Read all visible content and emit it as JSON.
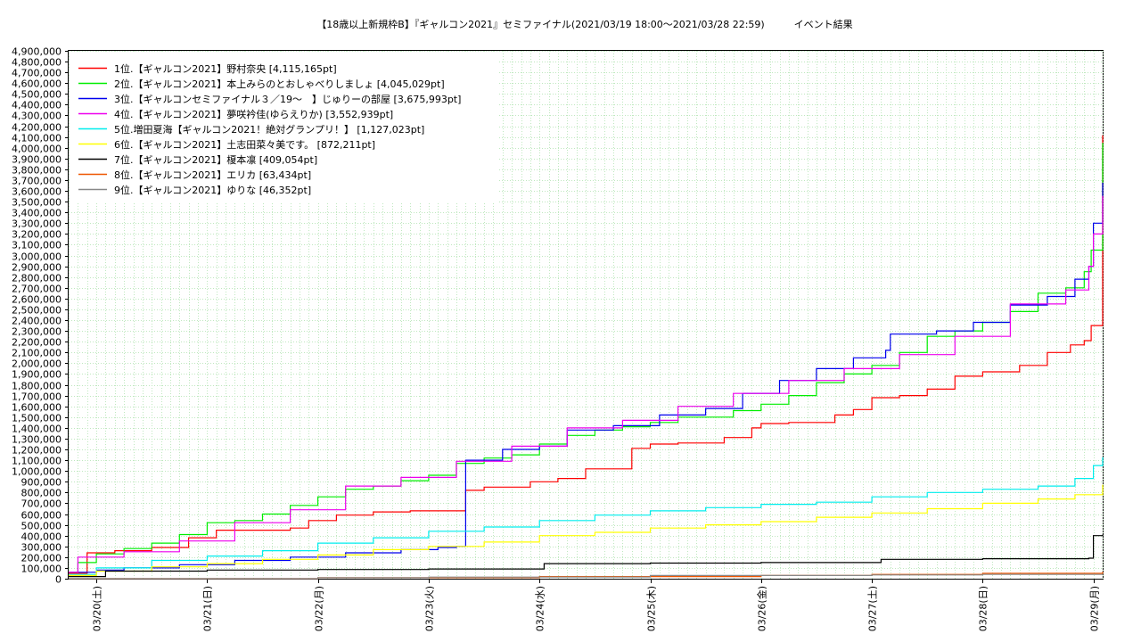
{
  "chart_data": {
    "type": "line",
    "title": "【18歳以上新規枠B】『ギャルコン2021』セミファイナル(2021/03/19 18:00～2021/03/28 22:59)　　　イベント結果",
    "xlabel": "",
    "ylabel": "",
    "ylim": [
      0,
      4900000
    ],
    "xlim": [
      "2021-03-19 18:00",
      "2021-03-29 02:00"
    ],
    "grid": true,
    "legend_position": "top-left",
    "x_ticks": [
      "03/20(土)",
      "03/21(日)",
      "03/22(月)",
      "03/23(火)",
      "03/24(水)",
      "03/25(木)",
      "03/26(金)",
      "03/27(土)",
      "03/28(日)",
      "03/29(月)"
    ],
    "y_ticks": [
      "0",
      "100,000",
      "200,000",
      "300,000",
      "400,000",
      "500,000",
      "600,000",
      "700,000",
      "800,000",
      "900,000",
      "1,000,000",
      "1,100,000",
      "1,200,000",
      "1,300,000",
      "1,400,000",
      "1,500,000",
      "1,600,000",
      "1,700,000",
      "1,800,000",
      "1,900,000",
      "2,000,000",
      "2,100,000",
      "2,200,000",
      "2,300,000",
      "2,400,000",
      "2,500,000",
      "2,600,000",
      "2,700,000",
      "2,800,000",
      "2,900,000",
      "3,000,000",
      "3,100,000",
      "3,200,000",
      "3,300,000",
      "3,400,000",
      "3,500,000",
      "3,600,000",
      "3,700,000",
      "3,800,000",
      "3,900,000",
      "4,000,000",
      "4,100,000",
      "4,200,000",
      "4,300,000",
      "4,400,000",
      "4,500,000",
      "4,600,000",
      "4,700,000",
      "4,800,000",
      "4,900,000"
    ],
    "series": [
      {
        "name": "1位.【ギャルコン2021】野村奈央 [4,115,165pt]",
        "color": "#ff0000",
        "x": [
          "2021-03-19 18:00",
          "2021-03-19 22:00",
          "2021-03-20 04:00",
          "2021-03-20 12:00",
          "2021-03-20 20:00",
          "2021-03-21 02:00",
          "2021-03-21 10:00",
          "2021-03-21 18:00",
          "2021-03-21 22:00",
          "2021-03-22 04:00",
          "2021-03-22 12:00",
          "2021-03-22 18:00",
          "2021-03-22 20:00",
          "2021-03-23 02:00",
          "2021-03-23 08:00",
          "2021-03-23 12:00",
          "2021-03-23 18:00",
          "2021-03-23 22:00",
          "2021-03-24 04:00",
          "2021-03-24 10:00",
          "2021-03-24 20:00",
          "2021-03-25 00:00",
          "2021-03-25 06:00",
          "2021-03-25 16:00",
          "2021-03-25 22:00",
          "2021-03-26 00:00",
          "2021-03-26 06:00",
          "2021-03-26 16:00",
          "2021-03-26 20:00",
          "2021-03-27 00:00",
          "2021-03-27 06:00",
          "2021-03-27 12:00",
          "2021-03-27 18:00",
          "2021-03-28 00:00",
          "2021-03-28 08:00",
          "2021-03-28 14:00",
          "2021-03-28 19:00",
          "2021-03-28 22:00",
          "2021-03-28 23:30",
          "2021-03-29 02:00"
        ],
        "y": [
          50000,
          240000,
          260000,
          290000,
          380000,
          450000,
          450000,
          470000,
          540000,
          590000,
          620000,
          620000,
          630000,
          630000,
          820000,
          850000,
          850000,
          900000,
          930000,
          1020000,
          1210000,
          1250000,
          1260000,
          1310000,
          1400000,
          1440000,
          1450000,
          1520000,
          1570000,
          1680000,
          1700000,
          1760000,
          1880000,
          1920000,
          1980000,
          2100000,
          2170000,
          2210000,
          2350000,
          4115165
        ]
      },
      {
        "name": "2位.【ギャルコン2021】本上みらのとおしゃべりしましょ [4,045,029pt]",
        "color": "#00ee00",
        "x": [
          "2021-03-19 18:00",
          "2021-03-19 20:00",
          "2021-03-20 00:00",
          "2021-03-20 06:00",
          "2021-03-20 12:00",
          "2021-03-20 18:00",
          "2021-03-21 00:00",
          "2021-03-21 06:00",
          "2021-03-21 12:00",
          "2021-03-21 18:00",
          "2021-03-22 00:00",
          "2021-03-22 06:00",
          "2021-03-22 12:00",
          "2021-03-22 18:00",
          "2021-03-23 00:00",
          "2021-03-23 06:00",
          "2021-03-23 12:00",
          "2021-03-23 18:00",
          "2021-03-24 00:00",
          "2021-03-24 06:00",
          "2021-03-24 12:00",
          "2021-03-24 18:00",
          "2021-03-25 00:00",
          "2021-03-25 06:00",
          "2021-03-25 12:00",
          "2021-03-25 18:00",
          "2021-03-26 00:00",
          "2021-03-26 06:00",
          "2021-03-26 12:00",
          "2021-03-26 18:00",
          "2021-03-27 00:00",
          "2021-03-27 06:00",
          "2021-03-27 12:00",
          "2021-03-27 18:00",
          "2021-03-28 00:00",
          "2021-03-28 06:00",
          "2021-03-28 12:00",
          "2021-03-28 18:00",
          "2021-03-28 22:00",
          "2021-03-28 23:30",
          "2021-03-29 02:00"
        ],
        "y": [
          60000,
          150000,
          230000,
          280000,
          330000,
          410000,
          520000,
          540000,
          600000,
          680000,
          760000,
          830000,
          860000,
          910000,
          960000,
          1070000,
          1120000,
          1150000,
          1250000,
          1330000,
          1380000,
          1410000,
          1450000,
          1500000,
          1500000,
          1560000,
          1620000,
          1700000,
          1820000,
          1900000,
          1980000,
          2100000,
          2250000,
          2300000,
          2380000,
          2480000,
          2650000,
          2700000,
          2850000,
          3050000,
          4045029
        ]
      },
      {
        "name": "3位.【ギャルコンセミファイナル３／19～　】じゅりーの部屋 [3,675,993pt]",
        "color": "#0000ee",
        "x": [
          "2021-03-19 18:00",
          "2021-03-20 00:00",
          "2021-03-20 06:00",
          "2021-03-20 18:00",
          "2021-03-21 06:00",
          "2021-03-21 18:00",
          "2021-03-22 06:00",
          "2021-03-22 18:00",
          "2021-03-23 02:00",
          "2021-03-23 06:00",
          "2021-03-23 08:00",
          "2021-03-23 16:00",
          "2021-03-24 00:00",
          "2021-03-24 06:00",
          "2021-03-24 16:00",
          "2021-03-25 02:00",
          "2021-03-25 12:00",
          "2021-03-25 20:00",
          "2021-03-26 04:00",
          "2021-03-26 12:00",
          "2021-03-26 20:00",
          "2021-03-27 03:00",
          "2021-03-27 04:00",
          "2021-03-27 14:00",
          "2021-03-27 22:00",
          "2021-03-28 06:00",
          "2021-03-28 14:00",
          "2021-03-28 20:00",
          "2021-03-28 23:00",
          "2021-03-29 00:00",
          "2021-03-29 02:00"
        ],
        "y": [
          60000,
          80000,
          100000,
          130000,
          170000,
          200000,
          240000,
          270000,
          290000,
          300000,
          1100000,
          1200000,
          1230000,
          1380000,
          1420000,
          1520000,
          1580000,
          1720000,
          1840000,
          1950000,
          2050000,
          2120000,
          2270000,
          2300000,
          2380000,
          2540000,
          2620000,
          2780000,
          2900000,
          3300000,
          3675993
        ]
      },
      {
        "name": "4位.【ギャルコン2021】夢咲衿佳(ゆらえりか) [3,552,939pt]",
        "color": "#ee00ee",
        "x": [
          "2021-03-19 18:00",
          "2021-03-19 20:00",
          "2021-03-20 06:00",
          "2021-03-20 18:00",
          "2021-03-21 06:00",
          "2021-03-21 18:00",
          "2021-03-22 06:00",
          "2021-03-22 18:00",
          "2021-03-23 06:00",
          "2021-03-23 18:00",
          "2021-03-24 06:00",
          "2021-03-24 18:00",
          "2021-03-25 06:00",
          "2021-03-25 18:00",
          "2021-03-26 06:00",
          "2021-03-26 18:00",
          "2021-03-27 06:00",
          "2021-03-27 18:00",
          "2021-03-28 06:00",
          "2021-03-28 18:00",
          "2021-03-28 23:00",
          "2021-03-29 00:00",
          "2021-03-29 02:00"
        ],
        "y": [
          60000,
          200000,
          250000,
          350000,
          520000,
          640000,
          860000,
          940000,
          1090000,
          1230000,
          1400000,
          1470000,
          1600000,
          1720000,
          1840000,
          1950000,
          2080000,
          2250000,
          2550000,
          2680000,
          2900000,
          3200000,
          3552939
        ]
      },
      {
        "name": "5位.増田夏海【ギャルコン2021！絶対グランプリ！】 [1,127,023pt]",
        "color": "#00eeee",
        "x": [
          "2021-03-19 18:00",
          "2021-03-20 00:00",
          "2021-03-20 12:00",
          "2021-03-21 00:00",
          "2021-03-21 12:00",
          "2021-03-22 00:00",
          "2021-03-22 12:00",
          "2021-03-23 00:00",
          "2021-03-23 12:00",
          "2021-03-24 00:00",
          "2021-03-24 12:00",
          "2021-03-25 00:00",
          "2021-03-25 12:00",
          "2021-03-26 00:00",
          "2021-03-26 12:00",
          "2021-03-27 00:00",
          "2021-03-27 12:00",
          "2021-03-28 00:00",
          "2021-03-28 12:00",
          "2021-03-28 20:00",
          "2021-03-29 00:00",
          "2021-03-29 02:00"
        ],
        "y": [
          40000,
          100000,
          170000,
          210000,
          260000,
          330000,
          380000,
          440000,
          480000,
          540000,
          590000,
          630000,
          660000,
          690000,
          710000,
          760000,
          800000,
          830000,
          860000,
          930000,
          1050000,
          1127023
        ]
      },
      {
        "name": "6位.【ギャルコン2021】土志田菜々美です。 [872,211pt]",
        "color": "#ffff00",
        "x": [
          "2021-03-19 18:00",
          "2021-03-20 00:00",
          "2021-03-20 12:00",
          "2021-03-21 00:00",
          "2021-03-21 12:00",
          "2021-03-22 00:00",
          "2021-03-22 12:00",
          "2021-03-23 00:00",
          "2021-03-23 12:00",
          "2021-03-24 00:00",
          "2021-03-24 12:00",
          "2021-03-25 00:00",
          "2021-03-25 12:00",
          "2021-03-26 00:00",
          "2021-03-26 12:00",
          "2021-03-27 00:00",
          "2021-03-27 12:00",
          "2021-03-28 00:00",
          "2021-03-28 12:00",
          "2021-03-28 20:00",
          "2021-03-29 02:00"
        ],
        "y": [
          30000,
          70000,
          110000,
          140000,
          180000,
          220000,
          270000,
          300000,
          340000,
          400000,
          430000,
          470000,
          500000,
          530000,
          570000,
          610000,
          650000,
          700000,
          740000,
          780000,
          872211
        ]
      },
      {
        "name": "7位.【ギャルコン2021】榎本凛 [409,054pt]",
        "color": "#000000",
        "x": [
          "2021-03-19 18:00",
          "2021-03-20 00:00",
          "2021-03-20 02:00",
          "2021-03-21 00:00",
          "2021-03-22 00:00",
          "2021-03-23 00:00",
          "2021-03-24 00:00",
          "2021-03-24 01:00",
          "2021-03-25 00:00",
          "2021-03-26 00:00",
          "2021-03-27 00:00",
          "2021-03-27 02:00",
          "2021-03-28 00:00",
          "2021-03-28 23:00",
          "2021-03-29 00:00",
          "2021-03-29 02:00"
        ],
        "y": [
          20000,
          20000,
          70000,
          80000,
          85000,
          90000,
          90000,
          140000,
          145000,
          150000,
          150000,
          180000,
          185000,
          190000,
          400000,
          409054
        ]
      },
      {
        "name": "8位.【ギャルコン2021】エリカ [63,434pt]",
        "color": "#ee5500",
        "x": [
          "2021-03-19 18:00",
          "2021-03-22 00:00",
          "2021-03-24 00:00",
          "2021-03-26 00:00",
          "2021-03-27 00:00",
          "2021-03-28 00:00",
          "2021-03-29 02:00"
        ],
        "y": [
          0,
          10000,
          20000,
          30000,
          40000,
          50000,
          63434
        ]
      },
      {
        "name": "9位.【ギャルコン2021】ゆりな [46,352pt]",
        "color": "#888888",
        "x": [
          "2021-03-19 18:00",
          "2021-03-22 00:00",
          "2021-03-23 00:00",
          "2021-03-25 00:00",
          "2021-03-27 00:00",
          "2021-03-28 00:00",
          "2021-03-29 02:00"
        ],
        "y": [
          0,
          10000,
          15000,
          30000,
          35000,
          40000,
          46352
        ]
      }
    ]
  }
}
